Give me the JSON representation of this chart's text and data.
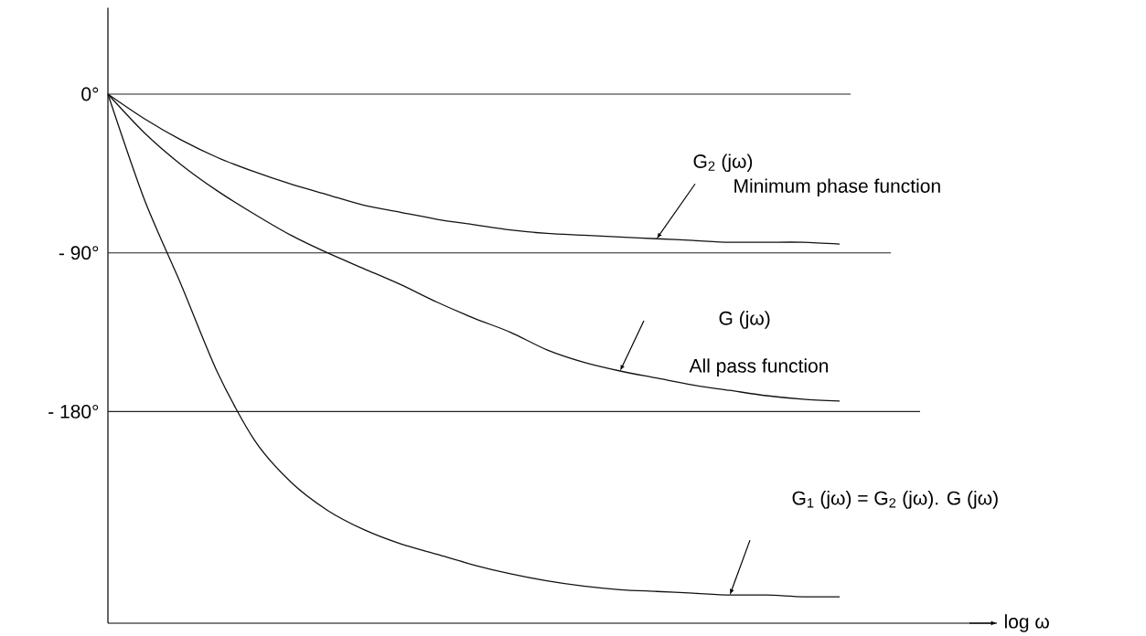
{
  "chart_data": {
    "type": "line",
    "categories": [
      null,
      null,
      null,
      null,
      null,
      null,
      null,
      null,
      null,
      null,
      null,
      null,
      null,
      null,
      null,
      null,
      null,
      null,
      null,
      null,
      null
    ],
    "series": [
      {
        "color": "#111111",
        "values": [
          0,
          -14,
          -26,
          -36,
          -44,
          -51,
          -57,
          -63,
          -67,
          -71,
          -74,
          -77,
          -79,
          -80,
          -81,
          -82,
          -83,
          -84,
          -84,
          -84,
          -85
        ]
      },
      {
        "color": "#111111",
        "values": [
          0,
          -22,
          -40,
          -55,
          -68,
          -80,
          -90,
          -99,
          -108,
          -118,
          -127,
          -135,
          -145,
          -152,
          -157,
          -161,
          -165,
          -168,
          -171,
          -173,
          -174
        ]
      },
      {
        "color": "#111111",
        "values": [
          0,
          -60,
          -108,
          -158,
          -196,
          -220,
          -236,
          -247,
          -255,
          -261,
          -267,
          -272,
          -276,
          -279,
          -281,
          -282,
          -283,
          -284,
          -284,
          -285,
          -285
        ]
      }
    ],
    "ylim": [
      -300,
      49
    ],
    "yticks": [
      {
        "value": 0,
        "label": "0°"
      },
      {
        "value": -90,
        "label": "- 90°"
      },
      {
        "value": -180,
        "label": "- 180°"
      }
    ],
    "ref_lines": [
      {
        "axis": "y",
        "value": 0,
        "color": "#222222"
      },
      {
        "axis": "y",
        "value": -90,
        "color": "#222222"
      },
      {
        "axis": "y",
        "value": -180,
        "color": "#222222"
      }
    ],
    "annotations": [
      "G$_{2}$ (jω)",
      "Minimum phase function",
      "G (jω)",
      "All pass function",
      "G$_{1}$ (jω) = G$_{2}$ (jω). G (jω)",
      "log ω"
    ]
  }
}
